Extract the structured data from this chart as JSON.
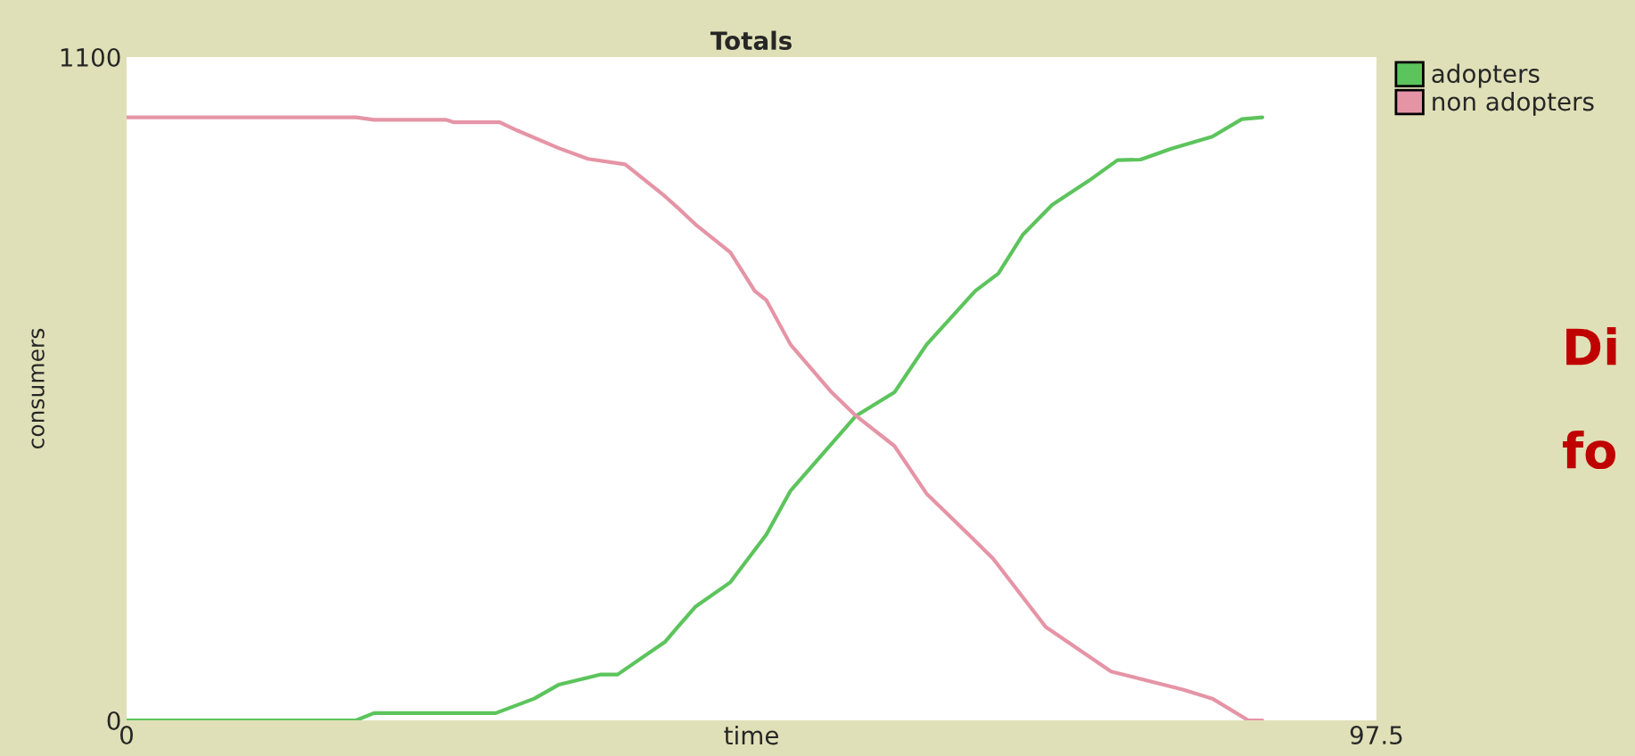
{
  "chart_data": {
    "type": "line",
    "title": "Totals",
    "xlabel": "time",
    "ylabel": "consumers",
    "xlim": [
      0,
      97.5
    ],
    "xticks": [
      0,
      97.5
    ],
    "ylim": [
      0,
      1100
    ],
    "yticks": [
      0,
      1100
    ],
    "grid": false,
    "legend": "right",
    "marker": "none",
    "line_style": "solid",
    "series": [
      {
        "name": "adopters",
        "color": "#5cc45c",
        "x": [
          0,
          17.9,
          19.3,
          28.8,
          31.8,
          33.7,
          37,
          38.3,
          42,
          43,
          44.4,
          47.1,
          49.9,
          51.8,
          56.9,
          59.9,
          62.4,
          66.2,
          68,
          69.9,
          72.2,
          75,
          77.3,
          79.1,
          81.5,
          84.7,
          87,
          88.6
        ],
        "values": [
          0,
          0,
          12,
          12,
          36,
          59,
          76,
          76,
          130,
          155,
          189,
          229,
          308,
          381,
          505,
          544,
          623,
          712,
          741,
          805,
          855,
          894,
          929,
          930,
          948,
          968,
          997,
          1000
        ]
      },
      {
        "name": "non adopters",
        "color": "#e594a6",
        "x": [
          0,
          17.9,
          19.3,
          24.9,
          25.5,
          29.1,
          30.5,
          33.7,
          36,
          38.9,
          42,
          43,
          44.4,
          47.1,
          49,
          49.9,
          51.8,
          55,
          56.9,
          59.9,
          62.4,
          65.7,
          67.6,
          71.7,
          76.8,
          82.4,
          84.7,
          87.5,
          88.6
        ],
        "values": [
          1000,
          1000,
          996,
          996,
          992,
          992,
          978,
          949,
          931,
          922,
          869,
          850,
          822,
          776,
          712,
          697,
          623,
          544,
          505,
          455,
          376,
          308,
          268,
          155,
          81,
          51,
          36,
          0,
          0
        ]
      }
    ],
    "annotations": [
      "Di",
      "fo"
    ]
  }
}
